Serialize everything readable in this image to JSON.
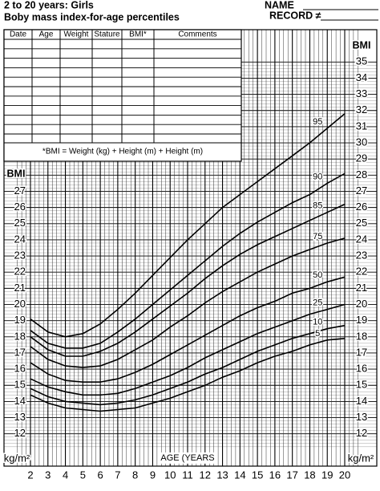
{
  "header": {
    "name_label": "NAME",
    "record_label": "RECORD ≠"
  },
  "table": {
    "columns": [
      "Date",
      "Age",
      "Weight",
      "Stature",
      "BMI*",
      "Comments"
    ],
    "note": "*BMI = Weight (kg) + Height (m) + Height (m)"
  },
  "chart_data": {
    "type": "line",
    "title": "2 to 20 years: Girls",
    "subtitle": "Boby mass index-for-age percentiles",
    "x_label": "AGE (YEARS",
    "y_label": "BMI",
    "y2_label": "BMI",
    "y_unit": "kg/m²",
    "y2_unit": "kg/m²",
    "x": [
      2,
      3,
      4,
      5,
      6,
      7,
      8,
      9,
      10,
      11,
      12,
      13,
      14,
      15,
      16,
      17,
      18,
      19,
      20
    ],
    "xlim": [
      2,
      20
    ],
    "xticks": [
      2,
      3,
      4,
      5,
      6,
      7,
      8,
      9,
      10,
      11,
      12,
      13,
      14,
      15,
      16,
      17,
      18,
      19,
      20
    ],
    "ylim": [
      10,
      37
    ],
    "yticks": [
      12,
      13,
      14,
      15,
      16,
      17,
      18,
      19,
      20,
      21,
      22,
      23,
      24,
      25,
      26,
      27
    ],
    "y2lim": [
      10,
      37
    ],
    "y2ticks": [
      12,
      13,
      14,
      15,
      16,
      17,
      18,
      19,
      20,
      21,
      22,
      23,
      24,
      25,
      26,
      27,
      28,
      29,
      30,
      31,
      32,
      33,
      34,
      35
    ],
    "grid": true,
    "series": [
      {
        "name": "5",
        "color": "#000000",
        "values": [
          14.4,
          13.9,
          13.6,
          13.5,
          13.4,
          13.5,
          13.6,
          13.9,
          14.2,
          14.6,
          15.0,
          15.5,
          15.9,
          16.4,
          16.8,
          17.1,
          17.5,
          17.8,
          17.9
        ]
      },
      {
        "name": "10",
        "color": "#000000",
        "values": [
          14.8,
          14.3,
          14.0,
          13.9,
          13.8,
          13.9,
          14.1,
          14.4,
          14.8,
          15.2,
          15.7,
          16.1,
          16.6,
          17.1,
          17.5,
          17.9,
          18.2,
          18.5,
          18.7
        ]
      },
      {
        "name": "25",
        "color": "#000000",
        "values": [
          15.4,
          14.9,
          14.6,
          14.4,
          14.4,
          14.5,
          14.8,
          15.2,
          15.6,
          16.1,
          16.7,
          17.2,
          17.7,
          18.2,
          18.6,
          19.0,
          19.4,
          19.7,
          20.0
        ]
      },
      {
        "name": "50",
        "color": "#000000",
        "values": [
          16.4,
          15.7,
          15.3,
          15.2,
          15.2,
          15.4,
          15.8,
          16.3,
          16.9,
          17.5,
          18.1,
          18.7,
          19.3,
          19.8,
          20.2,
          20.7,
          21.0,
          21.4,
          21.7
        ]
      },
      {
        "name": "75",
        "color": "#000000",
        "values": [
          17.4,
          16.6,
          16.2,
          16.1,
          16.2,
          16.6,
          17.2,
          17.8,
          18.6,
          19.3,
          20.1,
          20.8,
          21.4,
          22.0,
          22.5,
          23.0,
          23.4,
          23.8,
          24.1
        ]
      },
      {
        "name": "85",
        "color": "#000000",
        "values": [
          18.0,
          17.2,
          16.8,
          16.8,
          17.1,
          17.6,
          18.3,
          19.1,
          19.9,
          20.7,
          21.6,
          22.4,
          23.1,
          23.7,
          24.2,
          24.7,
          25.2,
          25.7,
          26.2
        ]
      },
      {
        "name": "90",
        "color": "#000000",
        "values": [
          18.4,
          17.6,
          17.3,
          17.3,
          17.6,
          18.3,
          19.1,
          20.0,
          20.9,
          21.8,
          22.7,
          23.6,
          24.4,
          25.1,
          25.7,
          26.3,
          26.8,
          27.5,
          28.1
        ]
      },
      {
        "name": "95",
        "color": "#000000",
        "values": [
          19.1,
          18.3,
          18.0,
          18.2,
          18.8,
          19.7,
          20.7,
          21.8,
          22.9,
          24.0,
          25.0,
          26.0,
          26.8,
          27.6,
          28.4,
          29.2,
          30.0,
          30.9,
          31.8
        ]
      }
    ]
  }
}
